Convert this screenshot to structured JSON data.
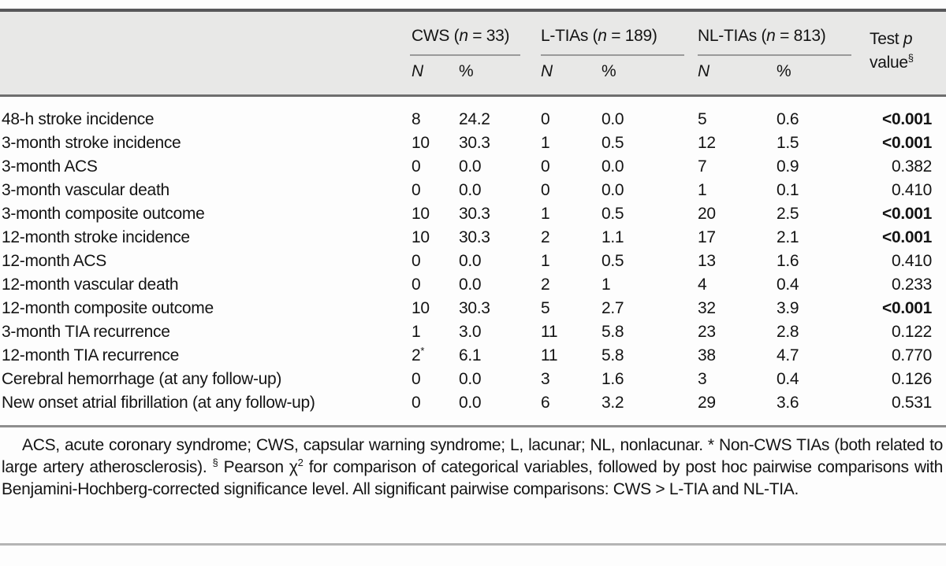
{
  "colors": {
    "header_band": "#e8e8e7",
    "top_rule": "#58585a",
    "header_rule": "#6e6e6e",
    "body_rule": "#8e8e8e",
    "bottom_rule": "#b5b5b5",
    "text": "#141414"
  },
  "table": {
    "groups": [
      {
        "prefix": "CWS (",
        "var": "n",
        "suffix": " = 33)"
      },
      {
        "prefix": "L-TIAs (",
        "var": "n",
        "suffix": " = 189)"
      },
      {
        "prefix": "NL-TIAs (",
        "var": "n",
        "suffix": " = 813)"
      }
    ],
    "subhead": {
      "n": "N",
      "pct": "%"
    },
    "pvalue_header": {
      "line1_prefix": "Test ",
      "line1_var": "p",
      "line2": "value",
      "line2_sup": "§"
    },
    "rows": [
      {
        "label": "48-h stroke incidence",
        "cells": [
          "8",
          "24.2",
          "0",
          "0.0",
          "5",
          "0.6"
        ],
        "p": "<0.001",
        "p_bold": true
      },
      {
        "label": "3-month stroke incidence",
        "cells": [
          "10",
          "30.3",
          "1",
          "0.5",
          "12",
          "1.5"
        ],
        "p": "<0.001",
        "p_bold": true
      },
      {
        "label": "3-month ACS",
        "cells": [
          "0",
          "0.0",
          "0",
          "0.0",
          "7",
          "0.9"
        ],
        "p": "0.382",
        "p_bold": false
      },
      {
        "label": "3-month vascular death",
        "cells": [
          "0",
          "0.0",
          "0",
          "0.0",
          "1",
          "0.1"
        ],
        "p": "0.410",
        "p_bold": false
      },
      {
        "label": "3-month composite outcome",
        "cells": [
          "10",
          "30.3",
          "1",
          "0.5",
          "20",
          "2.5"
        ],
        "p": "<0.001",
        "p_bold": true
      },
      {
        "label": "12-month stroke incidence",
        "cells": [
          "10",
          "30.3",
          "2",
          "1.1",
          "17",
          "2.1"
        ],
        "p": "<0.001",
        "p_bold": true
      },
      {
        "label": "12-month ACS",
        "cells": [
          "0",
          "0.0",
          "1",
          "0.5",
          "13",
          "1.6"
        ],
        "p": "0.410",
        "p_bold": false
      },
      {
        "label": "12-month vascular death",
        "cells": [
          "0",
          "0.0",
          "2",
          "1",
          "4",
          "0.4"
        ],
        "p": "0.233",
        "p_bold": false
      },
      {
        "label": "12-month composite outcome",
        "cells": [
          "10",
          "30.3",
          "5",
          "2.7",
          "32",
          "3.9"
        ],
        "p": "<0.001",
        "p_bold": true
      },
      {
        "label": "3-month TIA recurrence",
        "cells": [
          "1",
          "3.0",
          "11",
          "5.8",
          "23",
          "2.8"
        ],
        "p": "0.122",
        "p_bold": false
      },
      {
        "label": "12-month TIA recurrence",
        "cells": [
          "2*",
          "6.1",
          "11",
          "5.8",
          "38",
          "4.7"
        ],
        "p": "0.770",
        "p_bold": false
      },
      {
        "label": "Cerebral hemorrhage (at any follow-up)",
        "cells": [
          "0",
          "0.0",
          "3",
          "1.6",
          "3",
          "0.4"
        ],
        "p": "0.126",
        "p_bold": false
      },
      {
        "label": "New onset atrial fibrillation (at any follow-up)",
        "cells": [
          "0",
          "0.0",
          "6",
          "3.2",
          "29",
          "3.6"
        ],
        "p": "0.531",
        "p_bold": false
      }
    ]
  },
  "footnote": {
    "segments": [
      {
        "text": "ACS, acute coronary syndrome; CWS, capsular warning syndrome; L, lacunar; NL, nonlacunar. * Non-CWS TIAs (both related to large artery atherosclerosis). "
      },
      {
        "sup": "§"
      },
      {
        "text": " Pearson χ"
      },
      {
        "sup": "2"
      },
      {
        "text": " for comparison of categorical variables, followed by post hoc pairwise comparisons with Benjamini-Hochberg-corrected significance level. All significant pairwise comparisons: CWS > L-TIA and NL-TIA."
      }
    ]
  }
}
